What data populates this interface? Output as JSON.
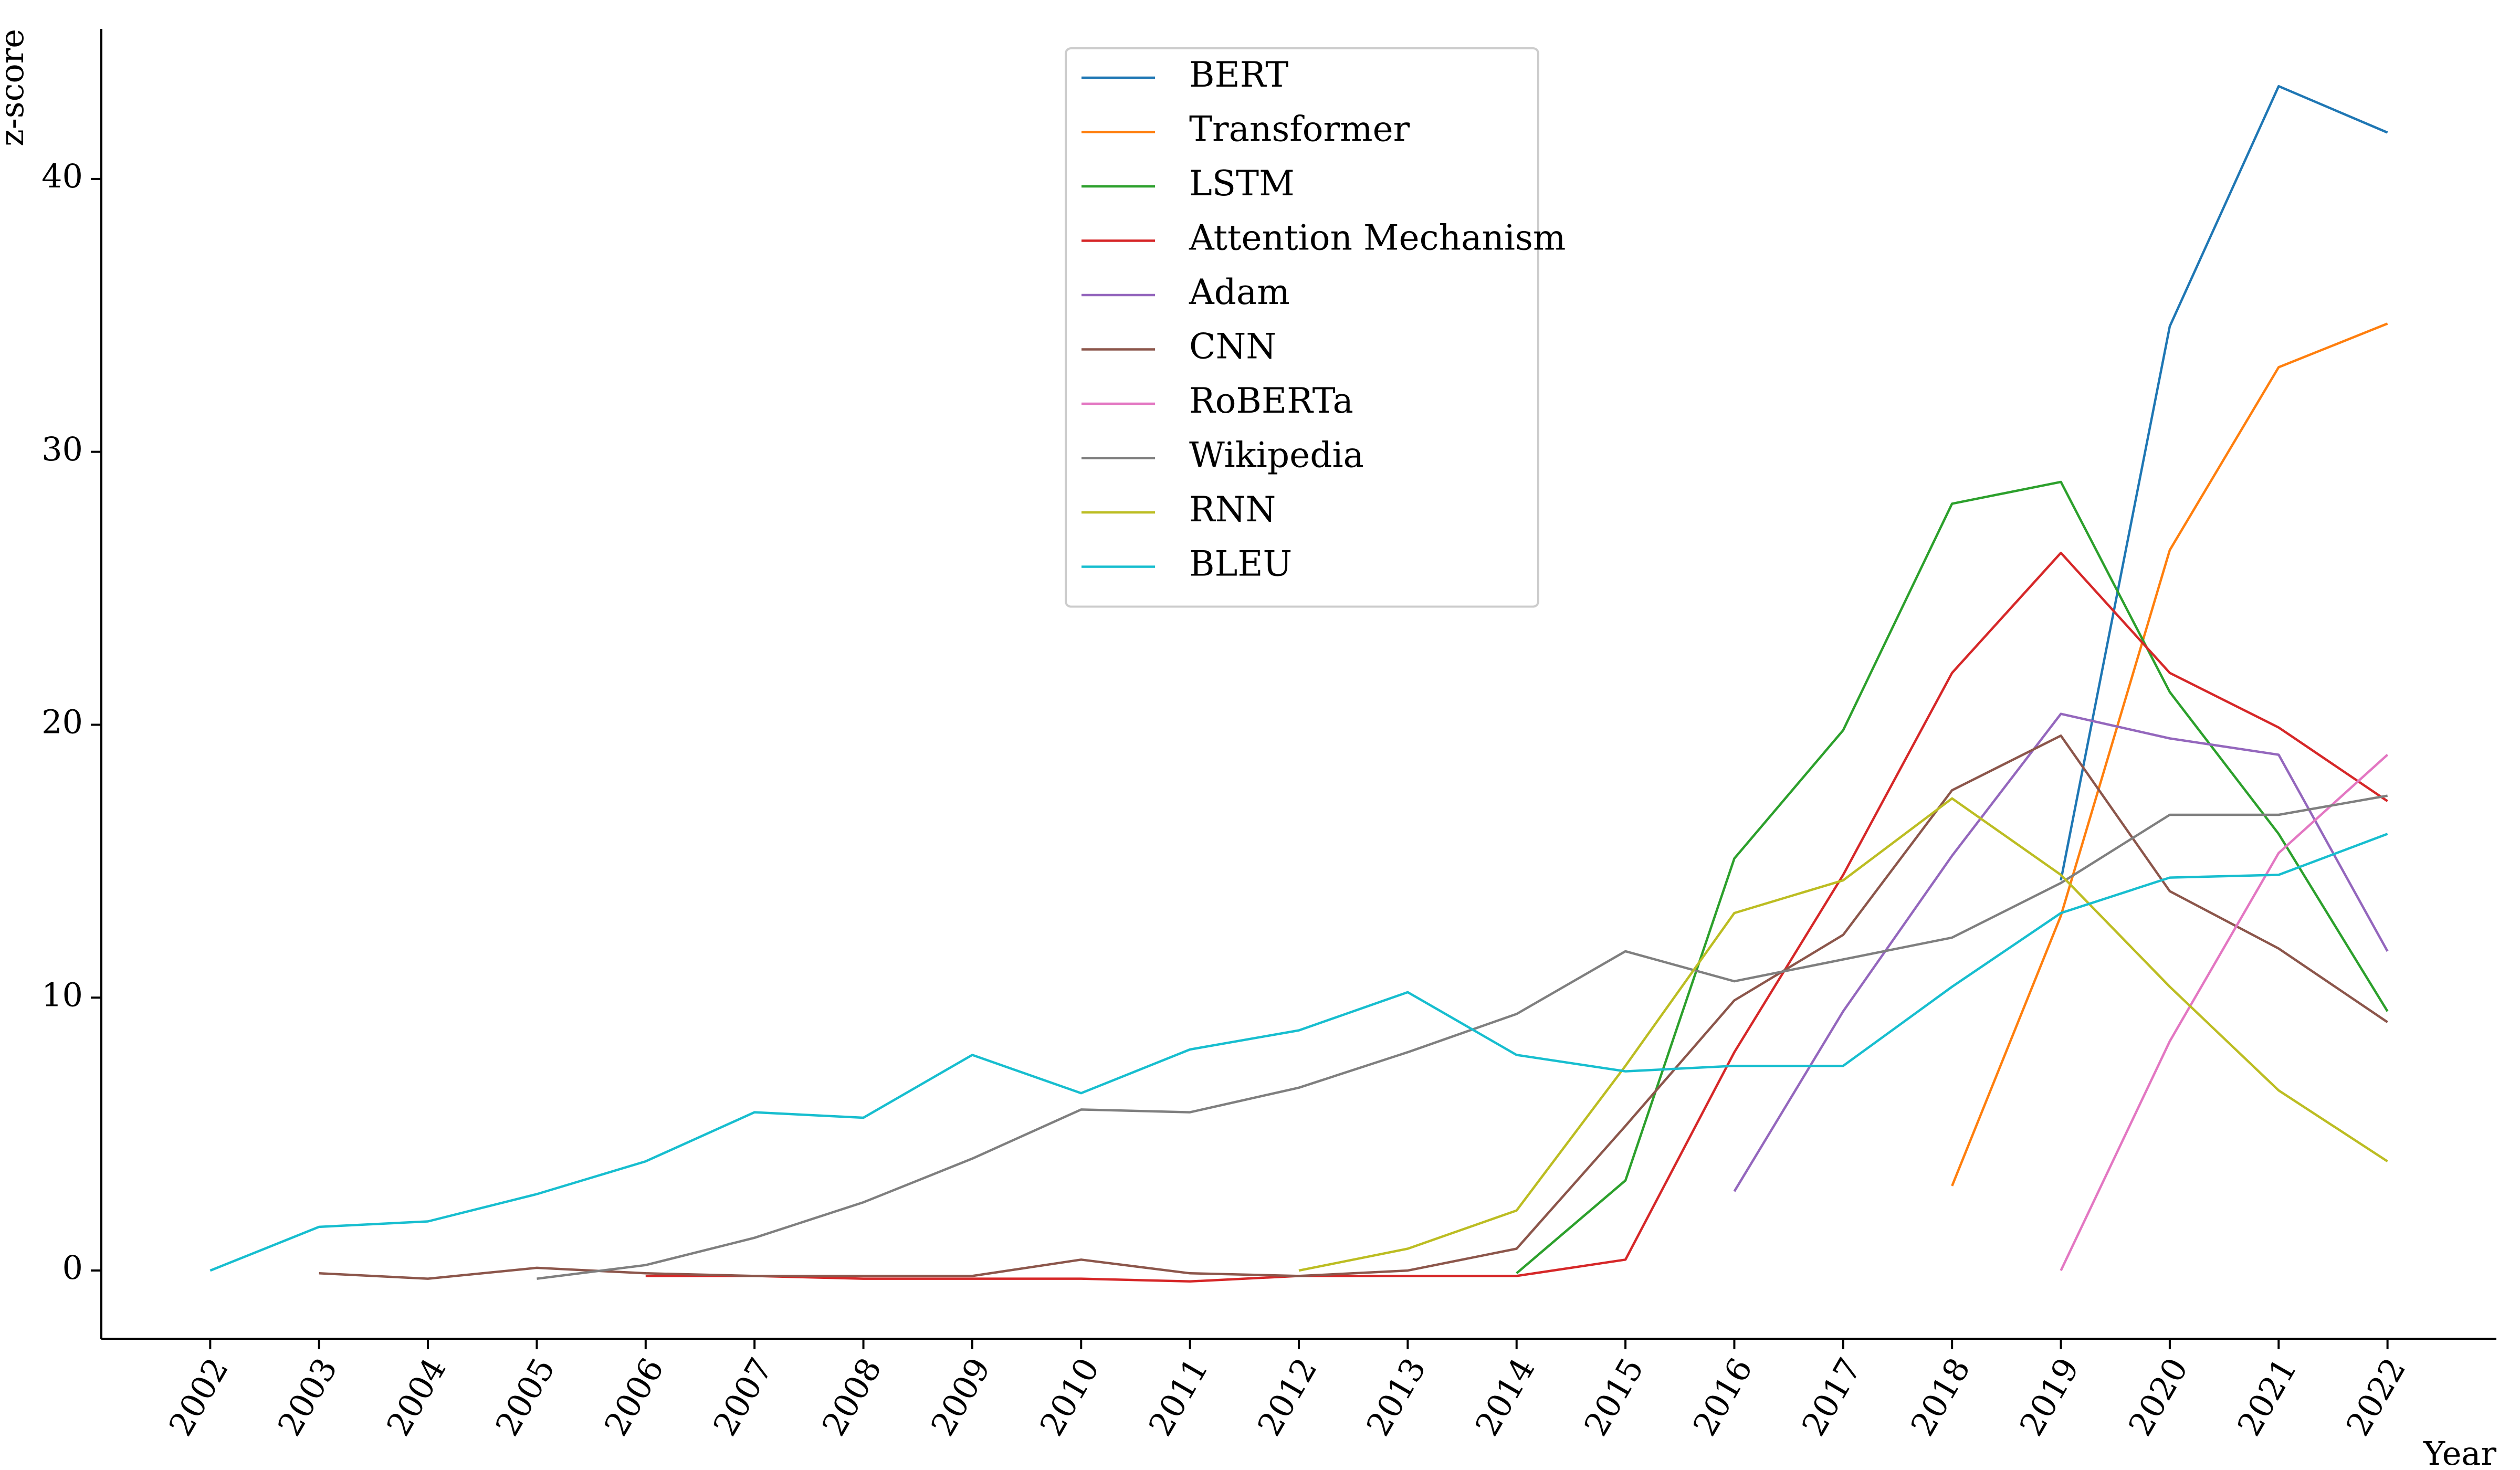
{
  "chart_data": {
    "type": "line",
    "title": "",
    "xlabel": "Year",
    "ylabel": "z-score",
    "x": [
      2002,
      2003,
      2004,
      2005,
      2006,
      2007,
      2008,
      2009,
      2010,
      2011,
      2012,
      2013,
      2014,
      2015,
      2016,
      2017,
      2018,
      2019,
      2020,
      2021,
      2022
    ],
    "x_tick_labels": [
      "2002",
      "2003",
      "2004",
      "2005",
      "2006",
      "2007",
      "2008",
      "2009",
      "2010",
      "2011",
      "2012",
      "2013",
      "2014",
      "2015",
      "2016",
      "2017",
      "2018",
      "2019",
      "2020",
      "2021",
      "2022"
    ],
    "y_ticks": [
      0,
      10,
      20,
      30,
      40
    ],
    "y_tick_labels": [
      "0",
      "10",
      "20",
      "30",
      "40"
    ],
    "xlim": [
      2001,
      2023
    ],
    "ylim": [
      -2.5,
      45.5
    ],
    "grid": false,
    "legend_position": "top-center",
    "series": [
      {
        "name": "BERT",
        "color": "#1f77b4",
        "values": [
          null,
          null,
          null,
          null,
          null,
          null,
          null,
          null,
          null,
          null,
          null,
          null,
          null,
          null,
          null,
          null,
          null,
          14.3,
          34.6,
          43.4,
          41.7
        ]
      },
      {
        "name": "Transformer",
        "color": "#ff7f0e",
        "values": [
          null,
          null,
          null,
          null,
          null,
          null,
          null,
          null,
          null,
          null,
          null,
          null,
          null,
          null,
          null,
          null,
          3.1,
          13.0,
          26.4,
          33.1,
          34.7
        ]
      },
      {
        "name": "LSTM",
        "color": "#2ca02c",
        "values": [
          null,
          null,
          null,
          null,
          null,
          null,
          null,
          null,
          null,
          null,
          null,
          null,
          -0.1,
          3.3,
          15.1,
          19.8,
          28.1,
          28.9,
          21.2,
          16.0,
          9.5
        ]
      },
      {
        "name": "Attention Mechanism",
        "color": "#d62728",
        "values": [
          null,
          null,
          null,
          null,
          -0.2,
          -0.2,
          -0.3,
          -0.3,
          -0.3,
          -0.4,
          -0.2,
          -0.2,
          -0.2,
          0.4,
          8.0,
          14.5,
          21.9,
          26.3,
          21.9,
          19.9,
          17.2
        ]
      },
      {
        "name": "Adam",
        "color": "#9467bd",
        "values": [
          null,
          null,
          null,
          null,
          null,
          null,
          null,
          null,
          null,
          null,
          null,
          null,
          null,
          null,
          2.9,
          9.5,
          15.2,
          20.4,
          19.5,
          18.9,
          11.7
        ]
      },
      {
        "name": "CNN",
        "color": "#8c564b",
        "values": [
          null,
          -0.1,
          -0.3,
          0.1,
          -0.1,
          -0.2,
          -0.2,
          -0.2,
          0.4,
          -0.1,
          -0.2,
          0.0,
          0.8,
          5.3,
          9.9,
          12.3,
          17.6,
          19.6,
          13.9,
          11.8,
          9.1
        ]
      },
      {
        "name": "RoBERTa",
        "color": "#e377c2",
        "values": [
          null,
          null,
          null,
          null,
          null,
          null,
          null,
          null,
          null,
          null,
          null,
          null,
          null,
          null,
          null,
          null,
          null,
          0.0,
          8.4,
          15.3,
          18.9
        ]
      },
      {
        "name": "Wikipedia",
        "color": "#7f7f7f",
        "values": [
          null,
          null,
          null,
          -0.3,
          0.2,
          1.2,
          2.5,
          4.1,
          5.9,
          5.8,
          6.7,
          8.0,
          9.4,
          11.7,
          10.6,
          11.4,
          12.2,
          14.2,
          16.7,
          16.7,
          17.4
        ]
      },
      {
        "name": "RNN",
        "color": "#bcbd22",
        "values": [
          null,
          null,
          null,
          null,
          null,
          null,
          null,
          null,
          null,
          null,
          0.0,
          0.8,
          2.2,
          7.5,
          13.1,
          14.3,
          17.3,
          14.5,
          10.4,
          6.6,
          4.0
        ]
      },
      {
        "name": "BLEU",
        "color": "#17becf",
        "values": [
          0.0,
          1.6,
          1.8,
          2.8,
          4.0,
          5.8,
          5.6,
          7.9,
          6.5,
          8.1,
          8.8,
          10.2,
          7.9,
          7.3,
          7.5,
          7.5,
          10.4,
          13.1,
          14.4,
          14.5,
          16.0
        ]
      }
    ]
  }
}
